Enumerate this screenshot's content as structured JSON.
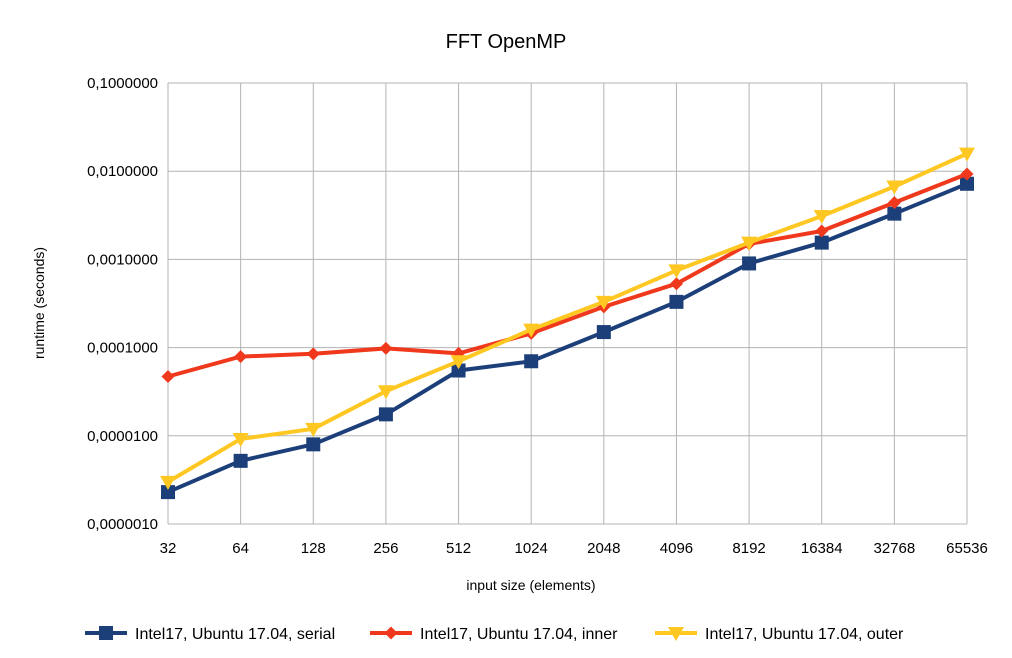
{
  "chart_data": {
    "type": "line",
    "title": "FFT OpenMP",
    "xlabel": "input size (elements)",
    "ylabel": "runtime (seconds)",
    "categories": [
      "32",
      "64",
      "128",
      "256",
      "512",
      "1024",
      "2048",
      "4096",
      "8192",
      "16384",
      "32768",
      "65536"
    ],
    "y_scale": "log",
    "ylim": [
      1e-06,
      0.1
    ],
    "y_ticks": [
      {
        "value": 0.1,
        "label": "0,1000000"
      },
      {
        "value": 0.01,
        "label": "0,0100000"
      },
      {
        "value": 0.001,
        "label": "0,0010000"
      },
      {
        "value": 0.0001,
        "label": "0,0001000"
      },
      {
        "value": 1e-05,
        "label": "0,0000100"
      },
      {
        "value": 1e-06,
        "label": "0,0000010"
      }
    ],
    "grid": true,
    "legend_position": "bottom",
    "series": [
      {
        "name": "Intel17, Ubuntu 17.04, serial",
        "color": "#1c3f7a",
        "marker": "square",
        "values": [
          2.3e-06,
          5.2e-06,
          8e-06,
          1.75e-05,
          5.5e-05,
          7e-05,
          0.00015,
          0.00033,
          0.0009,
          0.00155,
          0.0033,
          0.0072
        ]
      },
      {
        "name": "Intel17, Ubuntu 17.04, inner",
        "color": "#f0391c",
        "marker": "diamond",
        "values": [
          4.7e-05,
          7.9e-05,
          8.5e-05,
          9.8e-05,
          8.6e-05,
          0.000145,
          0.00029,
          0.00053,
          0.0015,
          0.0021,
          0.0044,
          0.0093
        ]
      },
      {
        "name": "Intel17, Ubuntu 17.04, outer",
        "color": "#ffc722",
        "marker": "triangle-down",
        "values": [
          3e-06,
          9.2e-06,
          1.2e-05,
          3.2e-05,
          7e-05,
          0.00016,
          0.00033,
          0.00075,
          0.00155,
          0.0031,
          0.0067,
          0.0158
        ]
      }
    ]
  }
}
